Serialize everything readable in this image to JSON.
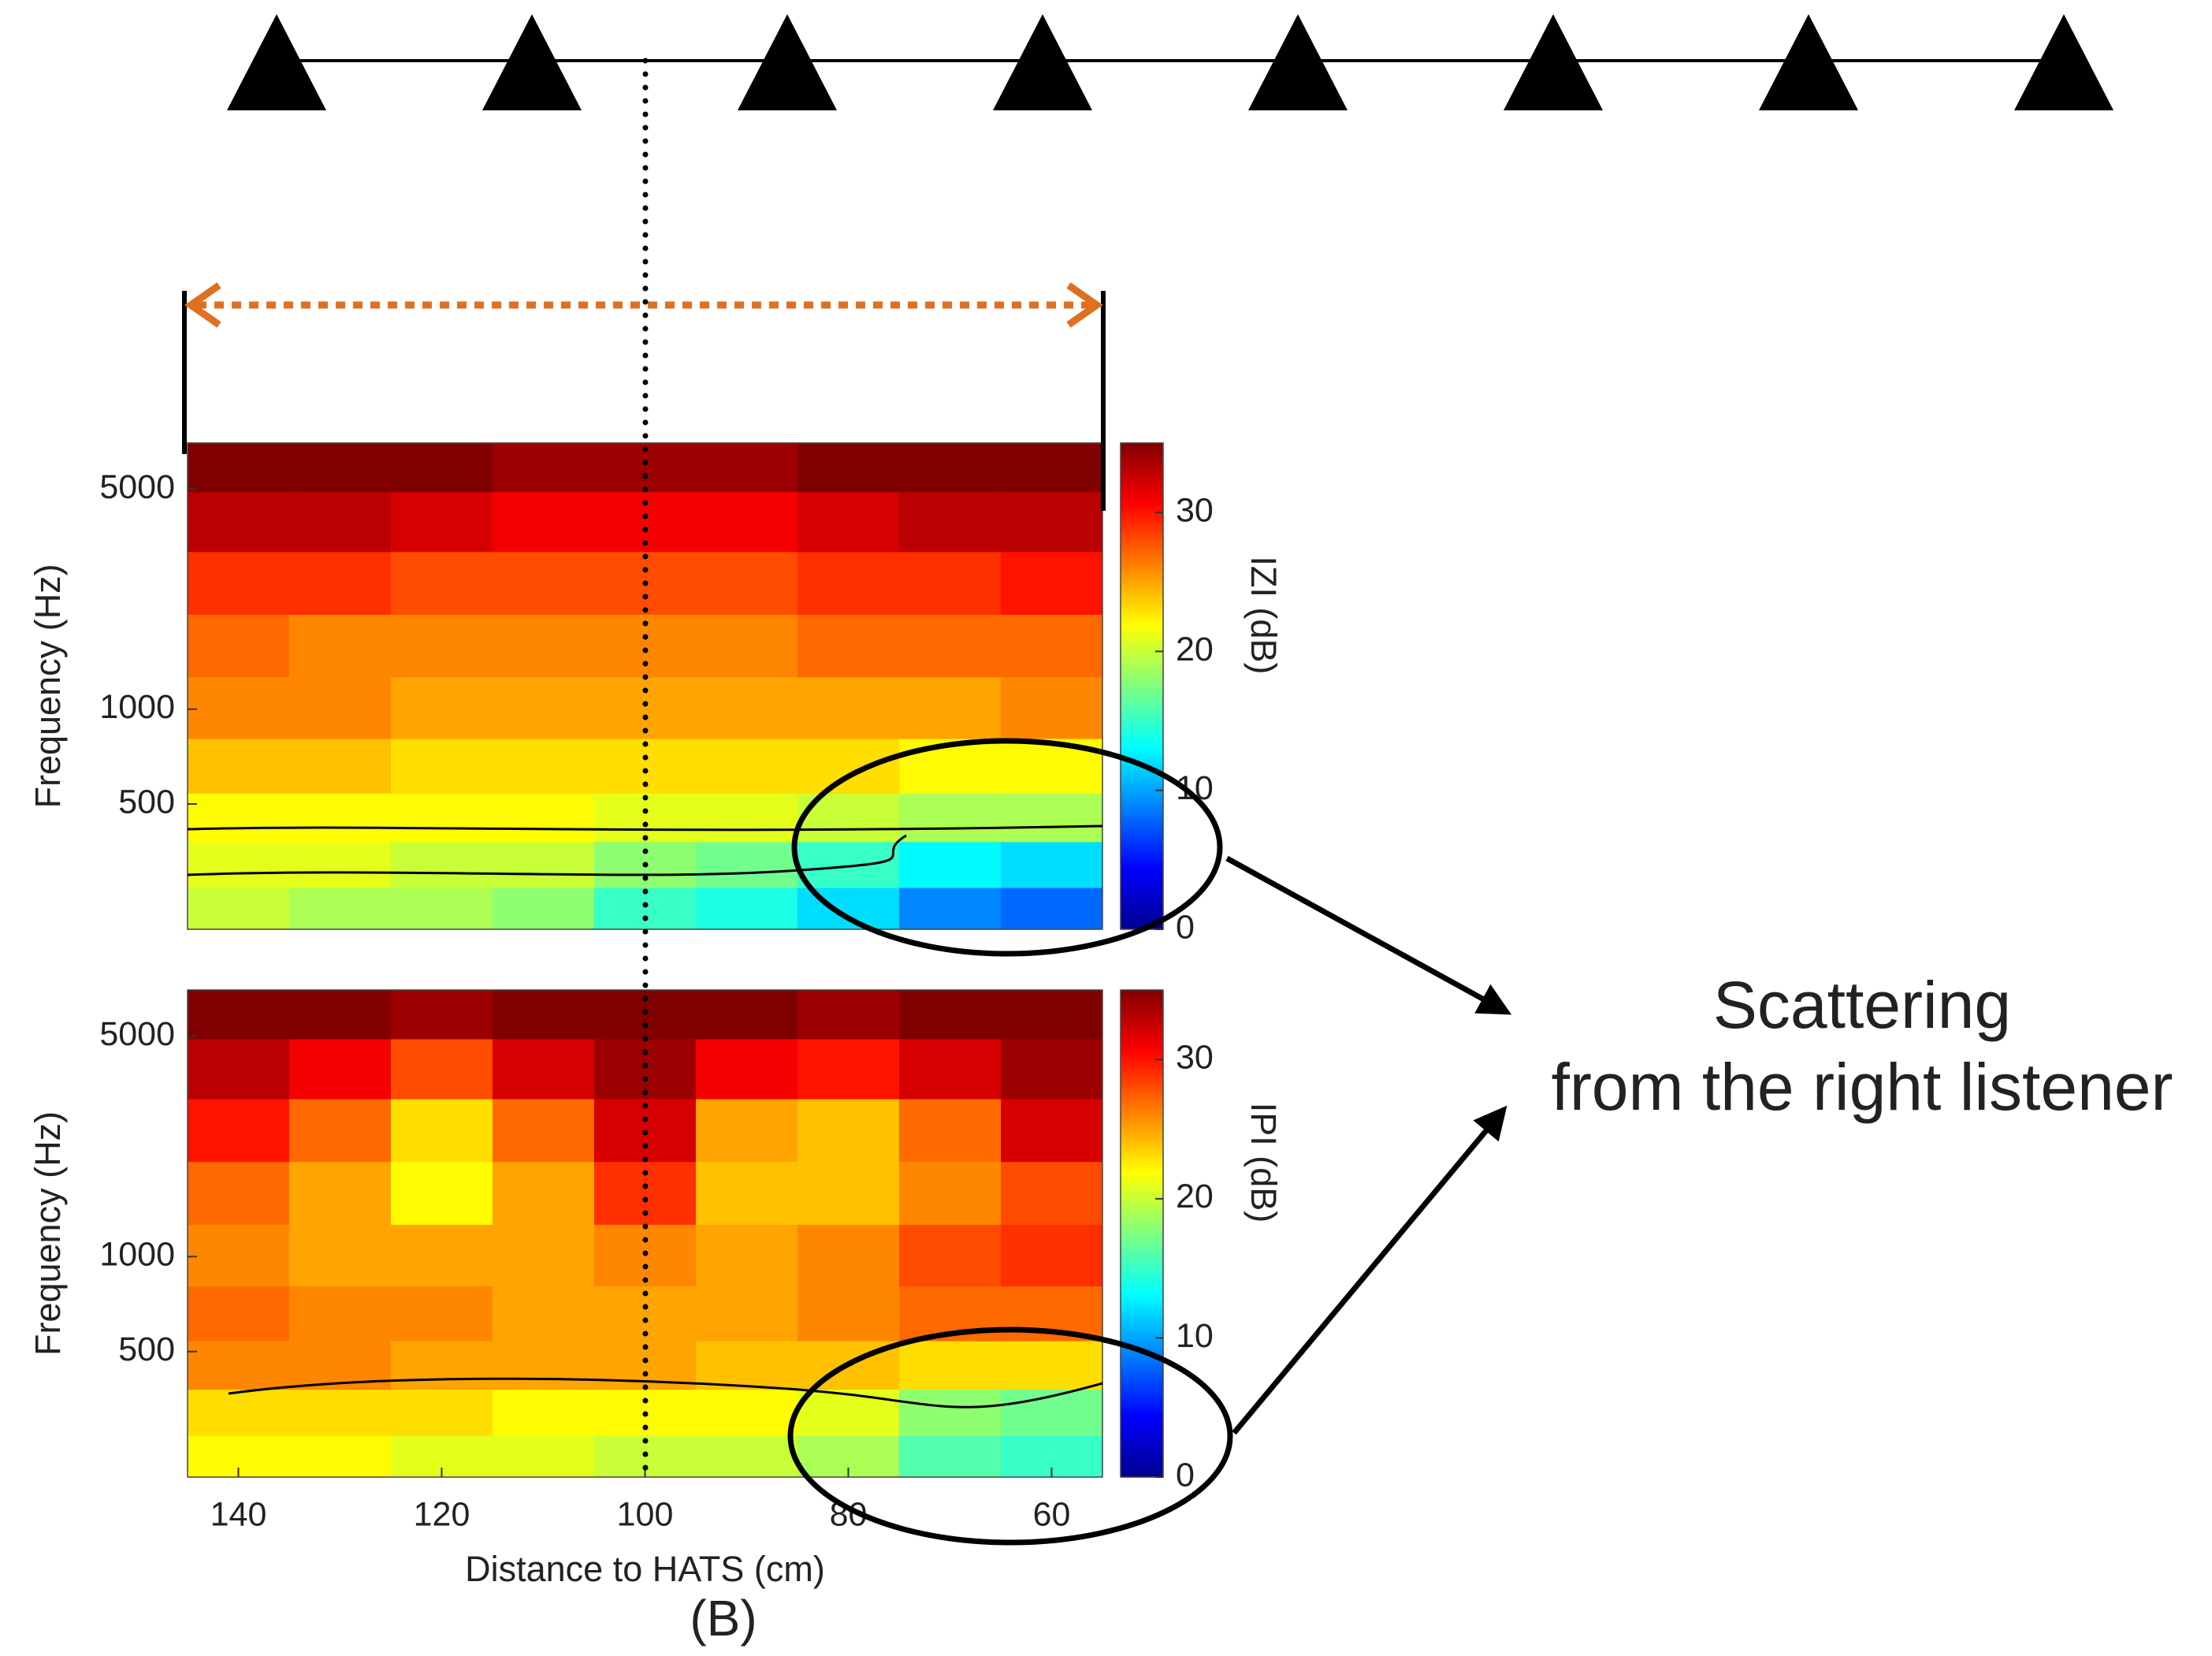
{
  "chart_data": [
    {
      "type": "heatmap",
      "ylabel": "Frequency (Hz)",
      "colorbar_label": "IZI (dB)",
      "colormap": "jet",
      "x": [
        140,
        130,
        120,
        110,
        100,
        90,
        80,
        70,
        60
      ],
      "xlim": [
        145,
        55
      ],
      "y": [
        230,
        320,
        450,
        650,
        1000,
        1600,
        2500,
        4000,
        6000
      ],
      "ylim": [
        200,
        7000
      ],
      "log_y": true,
      "yticks": [
        500,
        1000,
        5000
      ],
      "clim": [
        0,
        35
      ],
      "cticks": [
        0,
        10,
        20,
        30
      ],
      "values": [
        [
          20,
          19,
          19,
          18,
          15,
          14,
          12,
          9,
          8
        ],
        [
          21,
          21,
          20,
          20,
          18,
          17,
          15,
          13,
          12
        ],
        [
          22,
          22,
          22,
          22,
          21,
          21,
          20,
          19,
          19
        ],
        [
          24,
          24,
          23,
          23,
          23,
          23,
          23,
          22,
          22
        ],
        [
          26,
          26,
          25,
          25,
          25,
          25,
          25,
          25,
          26
        ],
        [
          27,
          26,
          26,
          26,
          26,
          26,
          27,
          27,
          27
        ],
        [
          29,
          29,
          28,
          28,
          28,
          28,
          29,
          29,
          30
        ],
        [
          33,
          33,
          32,
          31,
          31,
          31,
          32,
          33,
          33
        ],
        [
          35,
          35,
          35,
          34,
          34,
          34,
          35,
          35,
          35
        ]
      ]
    },
    {
      "type": "heatmap",
      "xlabel": "Distance to HATS (cm)",
      "ylabel": "Frequency (Hz)",
      "colorbar_label": "IPI (dB)",
      "colormap": "jet",
      "x": [
        140,
        130,
        120,
        110,
        100,
        90,
        80,
        70,
        60
      ],
      "xlim": [
        145,
        55
      ],
      "xticks": [
        140,
        120,
        100,
        80,
        60
      ],
      "y": [
        230,
        320,
        450,
        650,
        1000,
        1600,
        2500,
        4000,
        6000
      ],
      "ylim": [
        200,
        7000
      ],
      "log_y": true,
      "yticks": [
        500,
        1000,
        5000
      ],
      "clim": [
        0,
        35
      ],
      "cticks": [
        0,
        10,
        20,
        30
      ],
      "values": [
        [
          22,
          22,
          21,
          21,
          20,
          20,
          19,
          16,
          15
        ],
        [
          23,
          23,
          23,
          22,
          22,
          22,
          21,
          18,
          17
        ],
        [
          26,
          26,
          25,
          25,
          25,
          24,
          24,
          23,
          23
        ],
        [
          27,
          26,
          26,
          25,
          25,
          25,
          26,
          27,
          27
        ],
        [
          26,
          25,
          25,
          25,
          26,
          25,
          26,
          28,
          29
        ],
        [
          27,
          25,
          22,
          25,
          29,
          24,
          24,
          26,
          28
        ],
        [
          30,
          27,
          23,
          27,
          32,
          25,
          24,
          27,
          32
        ],
        [
          33,
          31,
          28,
          32,
          34,
          31,
          30,
          32,
          34
        ],
        [
          35,
          35,
          34,
          35,
          35,
          35,
          34,
          35,
          35
        ]
      ]
    }
  ],
  "figure": {
    "annotation_lines": [
      "Scattering",
      "from the right listener"
    ],
    "panel_label": "(B)"
  }
}
